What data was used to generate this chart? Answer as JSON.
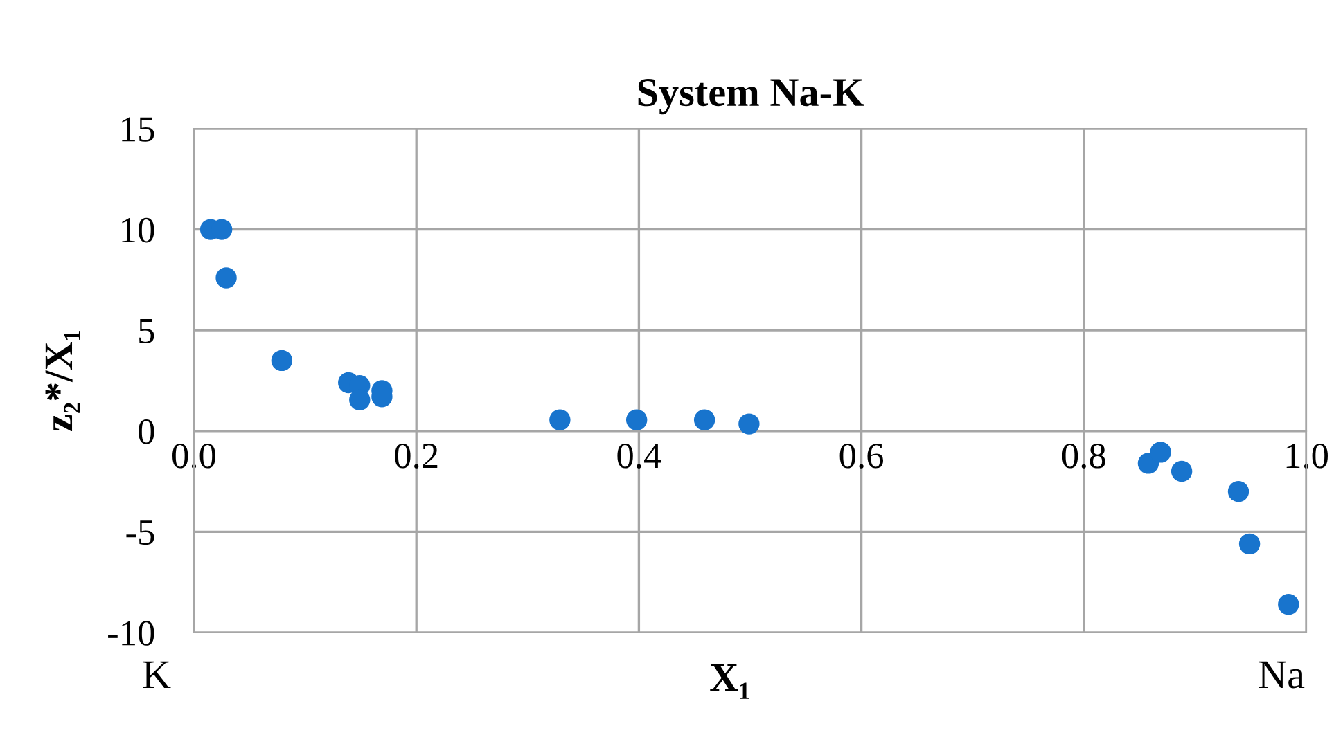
{
  "chart_data": {
    "type": "scatter",
    "title": "System Na-K",
    "xlabel": "X₁",
    "ylabel": "z₂*/X₁",
    "x": [
      0.015,
      0.025,
      0.029,
      0.079,
      0.139,
      0.149,
      0.149,
      0.169,
      0.169,
      0.329,
      0.398,
      0.459,
      0.499,
      0.858,
      0.869,
      0.888,
      0.939,
      0.949,
      0.984
    ],
    "series": [
      {
        "color": "#1874cd",
        "values": [
          10.0,
          10.0,
          7.6,
          3.5,
          2.4,
          2.25,
          1.55,
          2.0,
          1.7,
          0.55,
          0.55,
          0.55,
          0.35,
          -1.6,
          -1.05,
          -2.0,
          -3.0,
          -5.6,
          -8.6
        ]
      }
    ],
    "xlim": [
      0,
      1
    ],
    "xticks": [
      {
        "value": 0,
        "label": "0.0"
      },
      {
        "value": 0.2,
        "label": "0.2"
      },
      {
        "value": 0.4,
        "label": "0.4"
      },
      {
        "value": 0.6,
        "label": "0.6"
      },
      {
        "value": 0.8,
        "label": "0.8"
      },
      {
        "value": 1,
        "label": "1.0"
      }
    ],
    "ylim": [
      -10,
      15
    ],
    "yticks": [
      {
        "value": -10,
        "label": "-10"
      },
      {
        "value": -5,
        "label": "-5"
      },
      0,
      5,
      10,
      15
    ],
    "grid": true,
    "marker": "circle",
    "legend": false,
    "annotations": [
      "K",
      "Na"
    ]
  }
}
